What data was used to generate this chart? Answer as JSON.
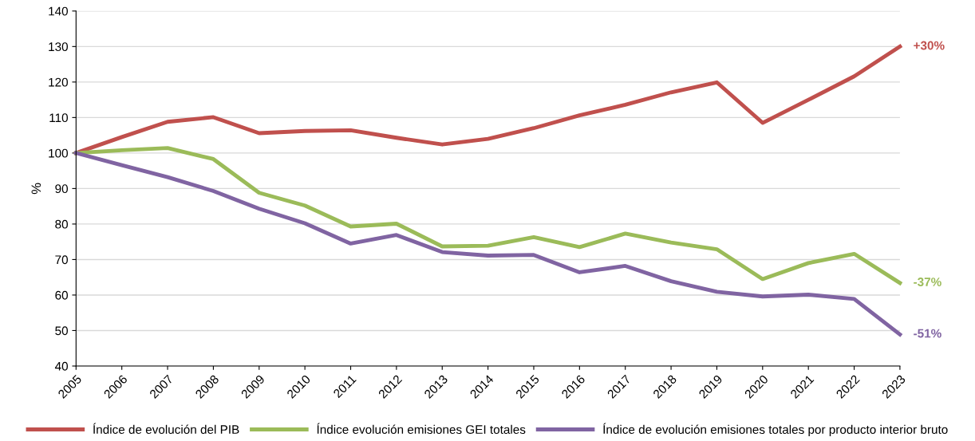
{
  "chart_data": {
    "type": "line",
    "ylabel": "%",
    "x": [
      2005,
      2006,
      2007,
      2008,
      2009,
      2010,
      2011,
      2012,
      2013,
      2014,
      2015,
      2016,
      2017,
      2018,
      2019,
      2020,
      2021,
      2022,
      2023
    ],
    "series": [
      {
        "name": "Índice de evolución del PIB",
        "color": "#c0504d",
        "values": [
          100,
          104.5,
          108.8,
          110.1,
          105.6,
          106.2,
          106.4,
          104.3,
          102.4,
          104,
          107,
          110.6,
          113.6,
          117.1,
          119.9,
          108.5,
          115,
          121.6,
          130
        ]
      },
      {
        "name": "Índice evolución emisiones GEI totales",
        "color": "#9bbb59",
        "values": [
          100,
          100.8,
          101.4,
          98.3,
          88.8,
          85.2,
          79.3,
          80.1,
          73.7,
          73.9,
          76.3,
          73.5,
          77.3,
          74.8,
          72.9,
          64.5,
          69,
          71.6,
          63.4
        ]
      },
      {
        "name": "Índice de evolución emisiones totales por producto interior bruto",
        "color": "#8064a2",
        "values": [
          100,
          96.6,
          93.2,
          89.3,
          84.3,
          80.2,
          74.5,
          76.9,
          72.1,
          71.1,
          71.3,
          66.4,
          68.2,
          63.9,
          60.9,
          59.6,
          60.1,
          58.9,
          48.9
        ]
      }
    ],
    "annotations": [
      "+30%",
      "-37%",
      "-51%"
    ],
    "xlim": [
      2005,
      2023
    ],
    "xticks": [
      2005,
      2006,
      2007,
      2008,
      2009,
      2010,
      2011,
      2012,
      2013,
      2014,
      2015,
      2016,
      2017,
      2018,
      2019,
      2020,
      2021,
      2022,
      2023
    ],
    "ylim": [
      40,
      140
    ],
    "yticks": [
      40,
      50,
      60,
      70,
      80,
      90,
      100,
      110,
      120,
      130,
      140
    ],
    "grid": "y",
    "legend": "bottom",
    "marker": "none",
    "line_style": "solid"
  }
}
